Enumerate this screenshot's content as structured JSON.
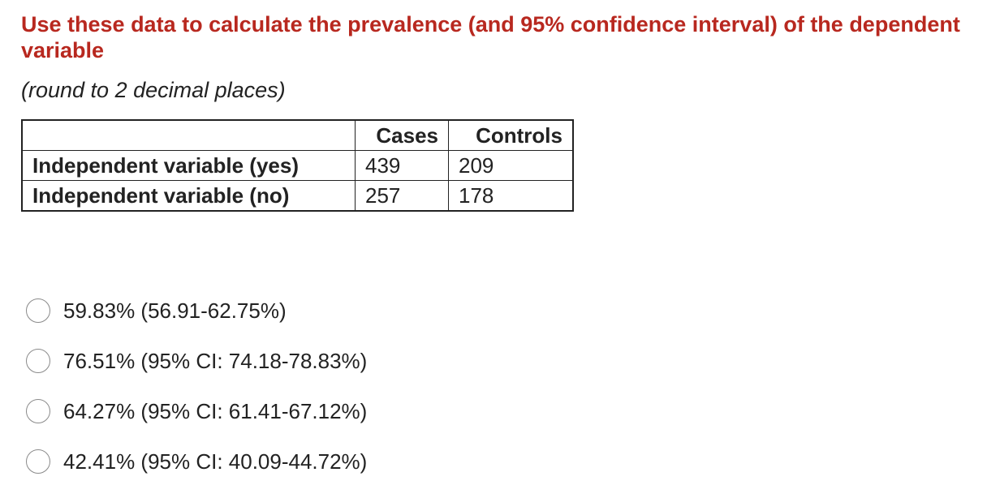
{
  "question": {
    "text": "Use these data to calculate the prevalence (and 95% confidence interval) of the dependent variable",
    "instruction": "(round to 2 decimal places)"
  },
  "table": {
    "headers": [
      "",
      "Cases",
      "Controls"
    ],
    "rows": [
      {
        "label": "Independent variable (yes)",
        "cases": "439",
        "controls": "209"
      },
      {
        "label": "Independent variable (no)",
        "cases": "257",
        "controls": "178"
      }
    ]
  },
  "options": [
    {
      "label": "59.83% (56.91-62.75%)",
      "selected": false
    },
    {
      "label": "76.51% (95% CI: 74.18-78.83%)",
      "selected": false
    },
    {
      "label": "64.27% (95% CI: 61.41-67.12%)",
      "selected": false
    },
    {
      "label": "42.41% (95% CI: 40.09-44.72%)",
      "selected": false
    }
  ],
  "colors": {
    "question": "#b8281f",
    "text": "#222222",
    "radio_border": "#8a8a8a"
  }
}
